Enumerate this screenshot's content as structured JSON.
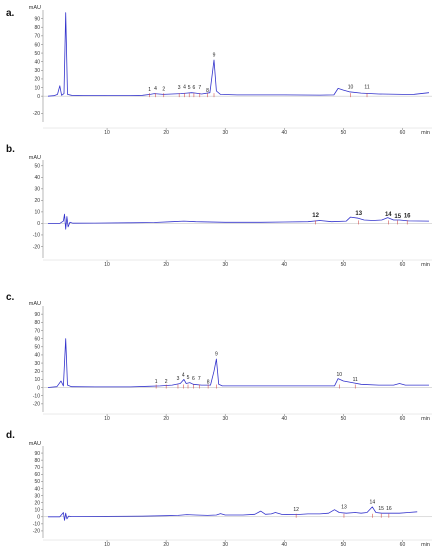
{
  "chart_data": [
    {
      "type": "line",
      "panel_label": "a.",
      "y_unit": "mAU",
      "x_unit": "min",
      "xlim": [
        0,
        65
      ],
      "ylim": [
        -30,
        100
      ],
      "y_ticks": [
        -20,
        0,
        10,
        20,
        30,
        40,
        50,
        60,
        70,
        80,
        90
      ],
      "x_ticks": [
        10,
        20,
        30,
        40,
        50,
        60
      ],
      "grid": false,
      "color": "#3333cc",
      "trace": [
        [
          0,
          0
        ],
        [
          1,
          0.5
        ],
        [
          1.6,
          2
        ],
        [
          2.0,
          12
        ],
        [
          2.3,
          1
        ],
        [
          2.7,
          3
        ],
        [
          3.0,
          97
        ],
        [
          3.3,
          2
        ],
        [
          4,
          1
        ],
        [
          6,
          0.8
        ],
        [
          10,
          0.6
        ],
        [
          14,
          0.6
        ],
        [
          16,
          1
        ],
        [
          17.3,
          2
        ],
        [
          18,
          3
        ],
        [
          19.5,
          2
        ],
        [
          21,
          2.5
        ],
        [
          22.5,
          3
        ],
        [
          23.5,
          3.5
        ],
        [
          24.3,
          4
        ],
        [
          25,
          3.5
        ],
        [
          26,
          2.5
        ],
        [
          27.4,
          4
        ],
        [
          27.8,
          25
        ],
        [
          28.1,
          42
        ],
        [
          28.5,
          6
        ],
        [
          29.2,
          2
        ],
        [
          32,
          1.5
        ],
        [
          40,
          1.5
        ],
        [
          46,
          1.2
        ],
        [
          48.4,
          1.5
        ],
        [
          49.1,
          9
        ],
        [
          50,
          7
        ],
        [
          51,
          5
        ],
        [
          53,
          3.5
        ],
        [
          56,
          2.5
        ],
        [
          60,
          2
        ],
        [
          62,
          2.2
        ],
        [
          64.5,
          4
        ]
      ],
      "peaks": [
        {
          "label": "1",
          "x": 17.2,
          "y": 5,
          "bold": false
        },
        {
          "label": "4",
          "x": 18.2,
          "y": 6,
          "bold": false
        },
        {
          "label": "2",
          "x": 19.6,
          "y": 5.5,
          "bold": false
        },
        {
          "label": "3",
          "x": 22.2,
          "y": 7,
          "bold": false
        },
        {
          "label": "4",
          "x": 23.1,
          "y": 8,
          "bold": false
        },
        {
          "label": "5",
          "x": 23.9,
          "y": 7,
          "bold": false
        },
        {
          "label": "6",
          "x": 24.7,
          "y": 7,
          "bold": false
        },
        {
          "label": "7",
          "x": 25.7,
          "y": 7,
          "bold": false
        },
        {
          "label": "8",
          "x": 27.0,
          "y": 3.5,
          "bold": false
        },
        {
          "label": "9",
          "x": 28.1,
          "y": 45,
          "bold": false
        },
        {
          "label": "10",
          "x": 51.2,
          "y": 8,
          "bold": false
        },
        {
          "label": "11",
          "x": 54.0,
          "y": 7.5,
          "bold": false
        }
      ]
    },
    {
      "type": "line",
      "panel_label": "b.",
      "y_unit": "mAU",
      "x_unit": "min",
      "xlim": [
        0,
        65
      ],
      "ylim": [
        -30,
        55
      ],
      "y_ticks": [
        -20,
        -10,
        0,
        10,
        20,
        30,
        40,
        50
      ],
      "x_ticks": [
        10,
        20,
        30,
        40,
        50,
        60
      ],
      "grid": false,
      "color": "#3333cc",
      "trace": [
        [
          0,
          0
        ],
        [
          2,
          0
        ],
        [
          2.6,
          2
        ],
        [
          2.8,
          8
        ],
        [
          3.0,
          -5
        ],
        [
          3.2,
          6
        ],
        [
          3.4,
          -3
        ],
        [
          3.7,
          1
        ],
        [
          4.2,
          0.2
        ],
        [
          8,
          0.3
        ],
        [
          14,
          0.5
        ],
        [
          18,
          0.8
        ],
        [
          21,
          1.5
        ],
        [
          23,
          2
        ],
        [
          25,
          1.5
        ],
        [
          30,
          1
        ],
        [
          36,
          1
        ],
        [
          40,
          1.2
        ],
        [
          44,
          1.5
        ],
        [
          46,
          2.5
        ],
        [
          48,
          1.5
        ],
        [
          50.5,
          2
        ],
        [
          51.2,
          5.5
        ],
        [
          52.5,
          4.5
        ],
        [
          53.5,
          3
        ],
        [
          55,
          2.5
        ],
        [
          56.5,
          3
        ],
        [
          57.5,
          5
        ],
        [
          58.5,
          3
        ],
        [
          59.5,
          3
        ],
        [
          61,
          2.2
        ],
        [
          64.5,
          2
        ]
      ],
      "peaks": [
        {
          "label": "12",
          "x": 45.3,
          "y": 4.5,
          "bold": true
        },
        {
          "label": "13",
          "x": 52.6,
          "y": 6.5,
          "bold": true
        },
        {
          "label": "14",
          "x": 57.6,
          "y": 5.5,
          "bold": true
        },
        {
          "label": "15",
          "x": 59.2,
          "y": 3.8,
          "bold": true
        },
        {
          "label": "16",
          "x": 60.8,
          "y": 4.3,
          "bold": true
        }
      ]
    },
    {
      "type": "line",
      "panel_label": "c.",
      "y_unit": "mAU",
      "x_unit": "min",
      "xlim": [
        0,
        65
      ],
      "ylim": [
        -30,
        100
      ],
      "y_ticks": [
        -20,
        -10,
        0,
        10,
        20,
        30,
        40,
        50,
        60,
        70,
        80,
        90
      ],
      "x_ticks": [
        10,
        20,
        30,
        40,
        50,
        60
      ],
      "grid": false,
      "color": "#3333cc",
      "trace": [
        [
          0,
          0
        ],
        [
          1.5,
          1
        ],
        [
          2.2,
          8
        ],
        [
          2.6,
          2
        ],
        [
          3.0,
          60
        ],
        [
          3.3,
          3
        ],
        [
          4,
          1
        ],
        [
          8,
          0.8
        ],
        [
          14,
          0.8
        ],
        [
          17,
          1.5
        ],
        [
          19,
          2
        ],
        [
          21,
          3
        ],
        [
          22.4,
          5
        ],
        [
          23,
          10
        ],
        [
          23.4,
          5
        ],
        [
          24,
          6
        ],
        [
          24.6,
          4
        ],
        [
          26,
          3
        ],
        [
          27.5,
          3
        ],
        [
          28.1,
          20
        ],
        [
          28.5,
          35
        ],
        [
          28.9,
          4
        ],
        [
          29.5,
          2
        ],
        [
          34,
          2
        ],
        [
          40,
          2
        ],
        [
          46,
          2
        ],
        [
          48.5,
          2
        ],
        [
          49.1,
          11
        ],
        [
          50,
          8
        ],
        [
          51.5,
          6
        ],
        [
          53,
          4
        ],
        [
          56,
          3
        ],
        [
          58.5,
          3
        ],
        [
          59.5,
          5
        ],
        [
          60.5,
          3
        ],
        [
          64.5,
          3
        ]
      ],
      "peaks": [
        {
          "label": "1",
          "x": 18.3,
          "y": 4.5,
          "bold": false
        },
        {
          "label": "2",
          "x": 20.0,
          "y": 4.5,
          "bold": false
        },
        {
          "label": "3",
          "x": 22.0,
          "y": 8,
          "bold": false
        },
        {
          "label": "4",
          "x": 22.9,
          "y": 12.5,
          "bold": false
        },
        {
          "label": "5",
          "x": 23.7,
          "y": 9.5,
          "bold": false
        },
        {
          "label": "6",
          "x": 24.6,
          "y": 8,
          "bold": false
        },
        {
          "label": "7",
          "x": 25.6,
          "y": 8,
          "bold": false
        },
        {
          "label": "8",
          "x": 27.1,
          "y": 4,
          "bold": false
        },
        {
          "label": "9",
          "x": 28.5,
          "y": 38,
          "bold": false
        },
        {
          "label": "10",
          "x": 49.3,
          "y": 13,
          "bold": false
        },
        {
          "label": "11",
          "x": 52.0,
          "y": 6.5,
          "bold": false
        }
      ]
    },
    {
      "type": "line",
      "panel_label": "d.",
      "y_unit": "mAU",
      "x_unit": "min",
      "xlim": [
        0,
        65
      ],
      "ylim": [
        -30,
        100
      ],
      "y_ticks": [
        -20,
        -10,
        0,
        10,
        20,
        30,
        40,
        50,
        60,
        70,
        80,
        90
      ],
      "x_ticks": [
        10,
        20,
        30,
        40,
        50,
        60
      ],
      "grid": false,
      "color": "#3333cc",
      "trace": [
        [
          0,
          0
        ],
        [
          2,
          0
        ],
        [
          2.6,
          6
        ],
        [
          2.8,
          -5
        ],
        [
          3.0,
          5
        ],
        [
          3.2,
          -3
        ],
        [
          3.5,
          1
        ],
        [
          4,
          0.3
        ],
        [
          10,
          0.5
        ],
        [
          16,
          1
        ],
        [
          20,
          1.5
        ],
        [
          22,
          2
        ],
        [
          23.5,
          3
        ],
        [
          25,
          2.5
        ],
        [
          27,
          2
        ],
        [
          28.5,
          2.5
        ],
        [
          29.2,
          4.5
        ],
        [
          30,
          2.5
        ],
        [
          33,
          2.5
        ],
        [
          35,
          3.5
        ],
        [
          36,
          8
        ],
        [
          36.8,
          3.5
        ],
        [
          37.8,
          4
        ],
        [
          38.5,
          6
        ],
        [
          39.5,
          3.5
        ],
        [
          42,
          3
        ],
        [
          44,
          4
        ],
        [
          46,
          4
        ],
        [
          47.5,
          5
        ],
        [
          48.5,
          10
        ],
        [
          49.3,
          6
        ],
        [
          50.5,
          5
        ],
        [
          52,
          6
        ],
        [
          53,
          5
        ],
        [
          54,
          6
        ],
        [
          54.9,
          14
        ],
        [
          55.5,
          6
        ],
        [
          56.5,
          5
        ],
        [
          58,
          5
        ],
        [
          59.5,
          5
        ],
        [
          61,
          6
        ],
        [
          62.5,
          7
        ]
      ],
      "peaks": [
        {
          "label": "12",
          "x": 42.0,
          "y": 7,
          "bold": false
        },
        {
          "label": "13",
          "x": 50.1,
          "y": 10,
          "bold": false
        },
        {
          "label": "14",
          "x": 54.9,
          "y": 17,
          "bold": false
        },
        {
          "label": "15",
          "x": 56.4,
          "y": 8,
          "bold": false
        },
        {
          "label": "16",
          "x": 57.7,
          "y": 8.5,
          "bold": false
        }
      ]
    }
  ]
}
